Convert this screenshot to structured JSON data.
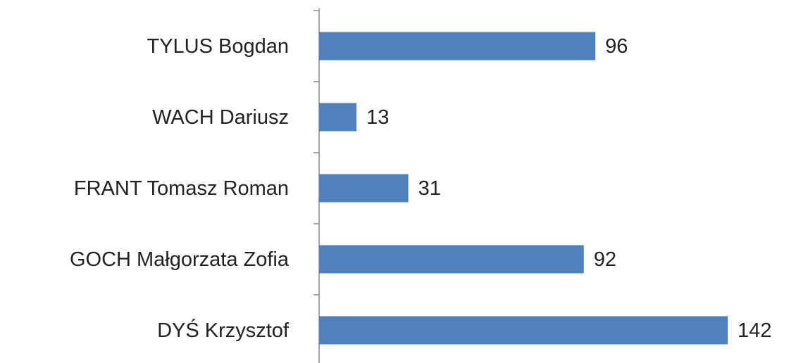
{
  "chart_data": {
    "type": "barh",
    "categories": [
      "TYLUS Bogdan",
      "WACH Dariusz",
      "FRANT Tomasz Roman",
      "GOCH Małgorzata Zofia",
      "DYŚ Krzysztof"
    ],
    "values": [
      96,
      13,
      31,
      92,
      142
    ],
    "color": "#4f81bd"
  }
}
